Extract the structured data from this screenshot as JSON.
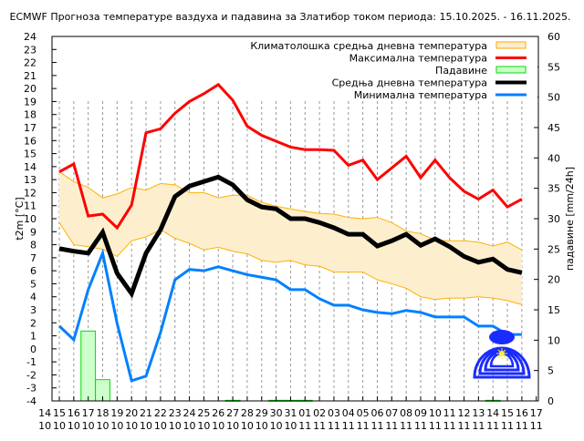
{
  "chart_data": {
    "type": "line",
    "title": "ECMWF Прогноза температуре ваздуха и падавина за Златибор током периода: 15.10.2025. - 16.11.2025.",
    "ylabel": "t2m [°C]",
    "y2label": "падавине [mm/24h]",
    "ylim": [
      -4,
      24
    ],
    "y2lim": [
      0,
      60
    ],
    "yticks": [
      -4,
      -3,
      -2,
      -1,
      0,
      1,
      2,
      3,
      4,
      5,
      6,
      7,
      8,
      9,
      10,
      11,
      12,
      13,
      14,
      15,
      16,
      17,
      18,
      19,
      20,
      21,
      22,
      23,
      24
    ],
    "y2ticks": [
      0,
      5,
      10,
      15,
      20,
      25,
      30,
      35,
      40,
      45,
      50,
      55,
      60
    ],
    "xtick_labels": [
      [
        "14",
        "10"
      ],
      [
        "15",
        "10"
      ],
      [
        "16",
        "10"
      ],
      [
        "17",
        "10"
      ],
      [
        "18",
        "10"
      ],
      [
        "19",
        "10"
      ],
      [
        "20",
        "10"
      ],
      [
        "21",
        "10"
      ],
      [
        "22",
        "10"
      ],
      [
        "23",
        "10"
      ],
      [
        "24",
        "10"
      ],
      [
        "25",
        "10"
      ],
      [
        "26",
        "10"
      ],
      [
        "27",
        "10"
      ],
      [
        "28",
        "10"
      ],
      [
        "29",
        "10"
      ],
      [
        "30",
        "10"
      ],
      [
        "31",
        "10"
      ],
      [
        "01",
        "11"
      ],
      [
        "02",
        "11"
      ],
      [
        "03",
        "11"
      ],
      [
        "04",
        "11"
      ],
      [
        "05",
        "11"
      ],
      [
        "06",
        "11"
      ],
      [
        "07",
        "11"
      ],
      [
        "08",
        "11"
      ],
      [
        "09",
        "11"
      ],
      [
        "10",
        "11"
      ],
      [
        "11",
        "11"
      ],
      [
        "12",
        "11"
      ],
      [
        "13",
        "11"
      ],
      [
        "14",
        "11"
      ],
      [
        "15",
        "11"
      ],
      [
        "16",
        "11"
      ],
      [
        "17",
        "11"
      ]
    ],
    "x": [
      "15.10",
      "16.10",
      "17.10",
      "18.10",
      "19.10",
      "20.10",
      "21.10",
      "22.10",
      "23.10",
      "24.10",
      "25.10",
      "26.10",
      "27.10",
      "28.10",
      "29.10",
      "30.10",
      "31.10",
      "01.11",
      "02.11",
      "03.11",
      "04.11",
      "05.11",
      "06.11",
      "07.11",
      "08.11",
      "09.11",
      "10.11",
      "11.11",
      "12.11",
      "13.11",
      "14.11",
      "15.11",
      "16.11"
    ],
    "grid": "vertical dashed",
    "legend_placement": "top-right",
    "legend": [
      "Климатолошка средња дневна температура",
      "Максимална температура",
      "Падавине",
      "Средња дневна температура",
      "Минимална температура"
    ],
    "climate_band": {
      "name": "Климатолошка средња дневна температура",
      "color": "#fdefce",
      "edge_color": "#ffb000",
      "upper": [
        13.6,
        12.85,
        12.4,
        11.6,
        11.9,
        12.4,
        12.2,
        12.7,
        12.6,
        12.0,
        12.0,
        11.6,
        11.8,
        11.8,
        11.25,
        10.95,
        10.75,
        10.55,
        10.4,
        10.35,
        10.1,
        10.0,
        10.1,
        9.7,
        9.05,
        8.85,
        8.35,
        8.3,
        8.3,
        8.2,
        7.9,
        8.2,
        7.6
      ],
      "lower": [
        9.7,
        8.0,
        7.85,
        7.65,
        7.1,
        8.3,
        8.6,
        9.15,
        8.5,
        8.1,
        7.6,
        7.8,
        7.5,
        7.3,
        6.8,
        6.65,
        6.8,
        6.45,
        6.35,
        5.9,
        5.9,
        5.9,
        5.3,
        5.0,
        4.65,
        4.0,
        3.8,
        3.9,
        3.9,
        4.0,
        3.9,
        3.7,
        3.4
      ]
    },
    "series": [
      {
        "name": "Максимална температура",
        "color": "#ff0000",
        "values": [
          13.6,
          14.2,
          10.2,
          10.35,
          9.3,
          11.05,
          16.6,
          16.9,
          18.1,
          19.0,
          19.6,
          20.3,
          19.1,
          17.1,
          16.4,
          15.95,
          15.5,
          15.3,
          15.3,
          15.25,
          14.1,
          14.5,
          13.0,
          13.9,
          14.8,
          13.15,
          14.5,
          13.15,
          12.1,
          11.5,
          12.2,
          10.9,
          11.5
        ]
      },
      {
        "name": "Средња дневна температура",
        "color": "#000000",
        "values": [
          7.7,
          7.5,
          7.35,
          8.95,
          5.8,
          4.25,
          7.35,
          9.15,
          11.7,
          12.5,
          12.85,
          13.2,
          12.6,
          11.45,
          10.9,
          10.75,
          10.0,
          10.0,
          9.7,
          9.3,
          8.8,
          8.8,
          7.9,
          8.3,
          8.8,
          7.95,
          8.45,
          7.85,
          7.1,
          6.65,
          6.9,
          6.1,
          5.85
        ]
      },
      {
        "name": "Минимална температура",
        "color": "#0080ff",
        "values": [
          1.75,
          0.7,
          4.55,
          7.35,
          1.95,
          -2.45,
          -2.1,
          1.25,
          5.3,
          6.1,
          6.0,
          6.3,
          6.0,
          5.7,
          5.5,
          5.3,
          4.55,
          4.55,
          3.85,
          3.35,
          3.35,
          3.0,
          2.8,
          2.7,
          2.95,
          2.8,
          2.45,
          2.45,
          2.45,
          1.75,
          1.75,
          1.1,
          1.1
        ]
      }
    ],
    "precipitation": {
      "name": "Падавине",
      "color": "#ccffcc",
      "edge_color": "#00dd00",
      "axis": "right",
      "values": [
        0,
        0,
        11.5,
        3.5,
        0,
        0,
        0,
        0,
        0,
        0,
        0,
        0,
        0.1,
        0,
        0,
        0.1,
        0.1,
        0.1,
        0,
        0,
        0,
        0,
        0,
        0,
        0,
        0,
        0,
        0,
        0,
        0,
        0.1,
        0,
        0
      ]
    }
  }
}
